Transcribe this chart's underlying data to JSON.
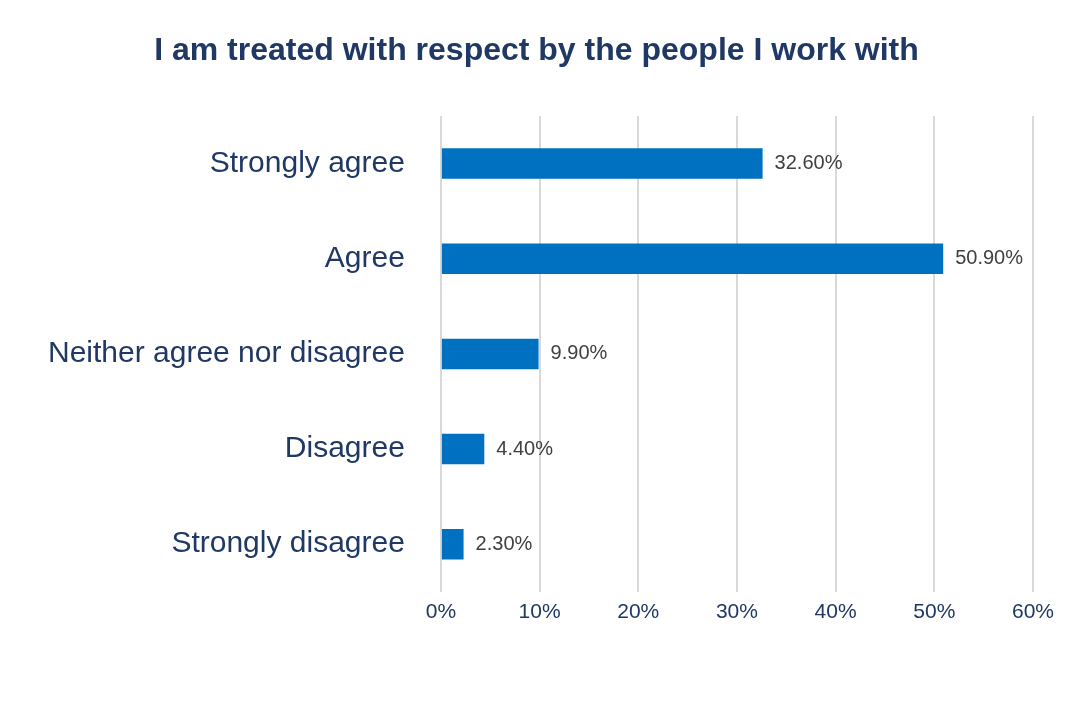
{
  "chart_data": {
    "type": "bar",
    "orientation": "horizontal",
    "title": "I am treated with respect by the people I work with",
    "categories": [
      "Strongly agree",
      "Agree",
      "Neither agree nor disagree",
      "Disagree",
      "Strongly disagree"
    ],
    "values": [
      32.6,
      50.9,
      9.9,
      4.4,
      2.3
    ],
    "value_labels": [
      "32.60%",
      "50.90%",
      "9.90%",
      "4.40%",
      "2.30%"
    ],
    "color": "#0070c0",
    "xlim": [
      0,
      60
    ],
    "xticks": [
      {
        "value": 0,
        "label": "0%"
      },
      {
        "value": 10,
        "label": "10%"
      },
      {
        "value": 20,
        "label": "20%"
      },
      {
        "value": 30,
        "label": "30%"
      },
      {
        "value": 40,
        "label": "40%"
      },
      {
        "value": 50,
        "label": "50%"
      },
      {
        "value": 60,
        "label": "60%"
      }
    ],
    "grid": "x",
    "legend": false
  }
}
